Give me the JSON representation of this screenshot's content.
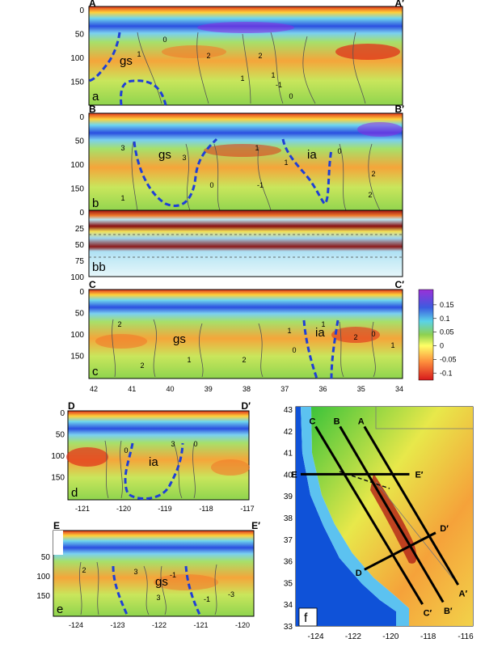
{
  "chart_data": [
    {
      "type": "heatmap",
      "panel_label": "a",
      "corner_left": "A",
      "corner_right": "A′",
      "features": [
        {
          "label": "gs"
        }
      ],
      "y_ticks": [
        "0",
        "50",
        "100",
        "150"
      ],
      "contour_labels": [
        "0",
        "2",
        "2",
        "1",
        "1",
        "0",
        "-1",
        "1"
      ]
    },
    {
      "type": "heatmap",
      "panel_label": "b",
      "corner_left": "B",
      "corner_right": "B′",
      "features": [
        {
          "label": "gs"
        },
        {
          "label": "ia"
        }
      ],
      "y_ticks": [
        "0",
        "50",
        "100",
        "150"
      ],
      "contour_labels": [
        "3",
        "3",
        "1",
        "0",
        "-1",
        "1",
        "0",
        "2",
        "2",
        "1"
      ]
    },
    {
      "type": "heatmap",
      "panel_label": "bb",
      "y_ticks": [
        "0",
        "25",
        "50",
        "75",
        "100"
      ]
    },
    {
      "type": "heatmap",
      "panel_label": "c",
      "corner_left": "C",
      "corner_right": "C′",
      "features": [
        {
          "label": "gs"
        },
        {
          "label": "ia"
        }
      ],
      "y_ticks": [
        "0",
        "50",
        "100",
        "150"
      ],
      "x_ticks": [
        "42",
        "41",
        "40",
        "39",
        "38",
        "37",
        "36",
        "35",
        "34"
      ],
      "contour_labels": [
        "2",
        "2",
        "1",
        "2",
        "1",
        "0",
        "1",
        "2",
        "0",
        "1"
      ]
    },
    {
      "type": "heatmap",
      "panel_label": "d",
      "corner_left": "D",
      "corner_right": "D′",
      "features": [
        {
          "label": "ia"
        }
      ],
      "y_ticks": [
        "0",
        "50",
        "100",
        "150"
      ],
      "x_ticks": [
        "-121",
        "-120",
        "-119",
        "-118",
        "-117"
      ],
      "contour_labels": [
        "0",
        "3",
        "0"
      ]
    },
    {
      "type": "heatmap",
      "panel_label": "e",
      "corner_left": "E",
      "corner_right": "E′",
      "features": [
        {
          "label": "gs"
        }
      ],
      "y_ticks": [
        "50",
        "100",
        "150"
      ],
      "x_ticks": [
        "-124",
        "-123",
        "-122",
        "-121",
        "-120"
      ],
      "contour_labels": [
        "2",
        "3",
        "3",
        "-1",
        "-1",
        "-3"
      ]
    },
    {
      "type": "map",
      "panel_label": "f",
      "x_ticks": [
        "-124",
        "-122",
        "-120",
        "-118",
        "-116"
      ],
      "y_ticks": [
        "43",
        "42",
        "41",
        "40",
        "39",
        "38",
        "37",
        "36",
        "35",
        "34",
        "33"
      ],
      "xlim": [
        -124.8,
        -116
      ],
      "ylim": [
        33,
        43
      ],
      "profiles": [
        {
          "start": "A",
          "end": "A′",
          "from": [
            -121.4,
            42.2
          ],
          "to": [
            -116.4,
            34.9
          ]
        },
        {
          "start": "B",
          "end": "B′",
          "from": [
            -122.7,
            42.2
          ],
          "to": [
            -117.2,
            34.1
          ]
        },
        {
          "start": "C",
          "end": "C′",
          "from": [
            -124.0,
            42.2
          ],
          "to": [
            -118.3,
            34.0
          ]
        },
        {
          "start": "E",
          "end": "E′",
          "from": [
            -124.8,
            40.0
          ],
          "to": [
            -119.0,
            40.0
          ]
        },
        {
          "start": "D",
          "end": "D′",
          "from": [
            -121.4,
            35.6
          ],
          "to": [
            -117.6,
            37.3
          ]
        }
      ]
    }
  ],
  "colorbar": {
    "ticks": [
      "0.15",
      "0.1",
      "0.05",
      "0",
      "-0.05",
      "-0.1"
    ],
    "values": [
      0.15,
      0.1,
      0.05,
      0,
      -0.05,
      -0.1
    ],
    "range": [
      -0.12,
      0.2
    ]
  },
  "colors": {
    "contour_line": "#555555",
    "feature_boundary": "#1f3fd6",
    "profile_line": "#000000",
    "ocean_deep": "#0f52d8",
    "ocean_shallow": "#5cc2f0"
  }
}
